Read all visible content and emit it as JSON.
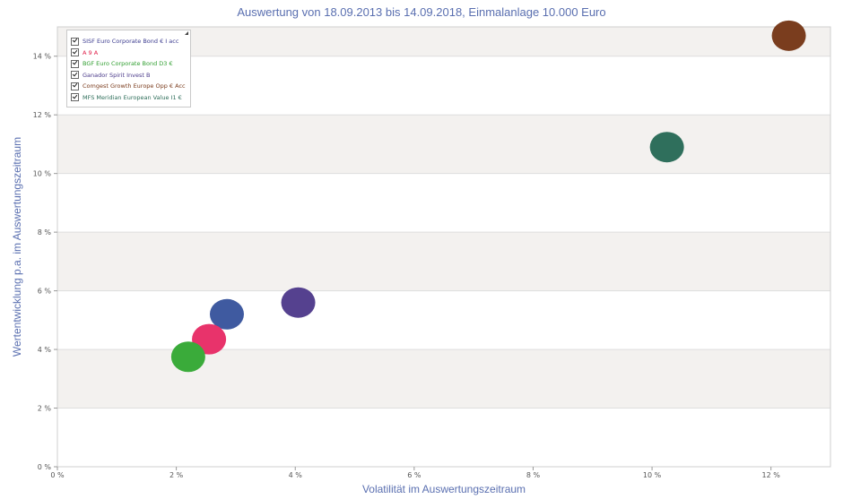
{
  "chart_data": {
    "type": "scatter",
    "title": "Auswertung von 18.09.2013 bis 14.09.2018, Einmalanlage 10.000 Euro",
    "xlabel": "Volatilität im Auswertungszeitraum",
    "ylabel": "Wertentwicklung p.a. im Auswertungszeitraum",
    "xlim": [
      0,
      13
    ],
    "ylim": [
      0,
      15
    ],
    "x_ticks": [
      0,
      2,
      4,
      6,
      8,
      10,
      12
    ],
    "x_tick_labels": [
      "0 %",
      "2 %",
      "4 %",
      "6 %",
      "8 %",
      "10 %",
      "12 %"
    ],
    "y_ticks": [
      0,
      2,
      4,
      6,
      8,
      10,
      12,
      14
    ],
    "y_tick_labels": [
      "0 %",
      "2 %",
      "4 %",
      "6 %",
      "8 %",
      "10 %",
      "12 %",
      "14 %"
    ],
    "grid": "horizontal bands",
    "legend_position": "top-left",
    "series": [
      {
        "name": "SISF Euro Corporate Bond € I acc",
        "x": 2.85,
        "y": 5.2,
        "color": "#3f5aa0",
        "legend_color": "#3b3b8f"
      },
      {
        "name": "A 9 A",
        "x": 2.55,
        "y": 4.35,
        "color": "#e8336b",
        "legend_color": "#e0204a"
      },
      {
        "name": "BGF Euro Corporate Bond D3 €",
        "x": 2.2,
        "y": 3.75,
        "color": "#3aab3a",
        "legend_color": "#2f9e2f"
      },
      {
        "name": "Ganador Spirit Invest B",
        "x": 4.05,
        "y": 5.6,
        "color": "#55418f",
        "legend_color": "#4a3a8a"
      },
      {
        "name": "Comgest Growth Europe Opp € Acc",
        "x": 12.3,
        "y": 14.7,
        "color": "#7a3d1e",
        "legend_color": "#7a3b1c"
      },
      {
        "name": "MFS Meridian European Value I1 €",
        "x": 10.25,
        "y": 10.9,
        "color": "#2f6f5c",
        "legend_color": "#2e6e5a"
      }
    ]
  }
}
